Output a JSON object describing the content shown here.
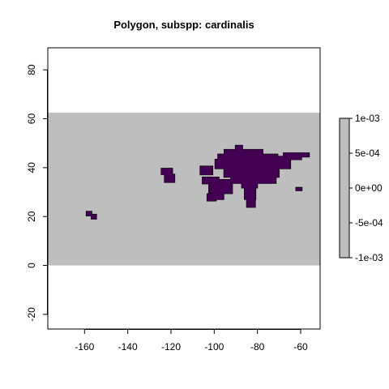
{
  "chart_data": {
    "type": "heatmap",
    "title": "Polygon, subspp: cardinalis",
    "xlabel": "",
    "ylabel": "",
    "xlim": [
      -177,
      -51
    ],
    "ylim": [
      -26,
      89
    ],
    "x_ticks": [
      -160,
      -140,
      -120,
      -100,
      -80,
      -60
    ],
    "x_tick_labels": [
      "-160",
      "-140",
      "-120",
      "-100",
      "-80",
      "-60"
    ],
    "y_ticks": [
      -20,
      0,
      20,
      40,
      60,
      80
    ],
    "y_tick_labels": [
      "-20",
      "0",
      "20",
      "40",
      "60",
      "80"
    ],
    "raster_extent": {
      "xmin": -177,
      "xmax": -51,
      "ymin": 0,
      "ymax": 62.5
    },
    "raster_background_value": 0,
    "raster_background_color": "#bebebe",
    "polygon_fill_color": "#440154",
    "polygon_border_color": "#000000",
    "polygon_cells": [
      [
        -159.2,
        20.3,
        -156.7,
        22.1
      ],
      [
        -156.9,
        19.0,
        -154.5,
        20.9
      ],
      [
        -124.5,
        37.2,
        -119.3,
        39.7
      ],
      [
        -123.0,
        34.0,
        -118.3,
        37.3
      ],
      [
        -106.5,
        37.1,
        -100.7,
        40.6
      ],
      [
        -105.5,
        33.4,
        -97.8,
        36.1
      ],
      [
        -102.5,
        29.7,
        -94.4,
        33.6
      ],
      [
        -100.8,
        27.0,
        -95.6,
        30.0
      ],
      [
        -97.7,
        29.4,
        -91.6,
        35.1
      ],
      [
        -103.3,
        26.4,
        -99.1,
        29.3
      ],
      [
        -99.6,
        39.6,
        -64.7,
        43.4
      ],
      [
        -95.5,
        36.1,
        -70.0,
        39.7
      ],
      [
        -92.3,
        33.6,
        -71.4,
        36.2
      ],
      [
        -87.3,
        31.7,
        -80.0,
        33.7
      ],
      [
        -86.0,
        27.0,
        -80.8,
        31.8
      ],
      [
        -85.0,
        23.8,
        -81.0,
        27.2
      ],
      [
        -98.3,
        43.2,
        -70.6,
        45.5
      ],
      [
        -95.4,
        45.2,
        -77.5,
        47.4
      ],
      [
        -90.2,
        47.1,
        -86.9,
        49.1
      ],
      [
        -69.0,
        42.3,
        -65.4,
        43.5
      ],
      [
        -72.0,
        43.3,
        -59.6,
        44.6
      ],
      [
        -68.0,
        44.4,
        -56.0,
        46.0
      ],
      [
        -62.2,
        30.6,
        -59.4,
        31.9
      ]
    ],
    "legend": {
      "position": "right",
      "min": -0.001,
      "max": 0.001,
      "fill_color": "#bebebe",
      "ticks": [
        0.001,
        0.0005,
        0,
        -0.0005,
        -0.001
      ],
      "tick_labels": [
        "1e-03",
        "5e-04",
        "0e+00",
        "-5e-04",
        "-1e-03"
      ]
    }
  }
}
